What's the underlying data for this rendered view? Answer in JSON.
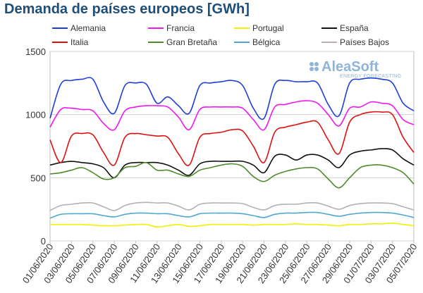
{
  "chart_data": {
    "type": "line",
    "title": "Demanda de países europeos [GWh]",
    "xlabel": "",
    "ylabel": "",
    "ylim": [
      0,
      1500
    ],
    "y_ticks": [
      0,
      500,
      1000,
      1500
    ],
    "grid": true,
    "legend_position": "top",
    "x": [
      "01/06/2020",
      "02/06/2020",
      "03/06/2020",
      "04/06/2020",
      "05/06/2020",
      "06/06/2020",
      "07/06/2020",
      "08/06/2020",
      "09/06/2020",
      "10/06/2020",
      "11/06/2020",
      "12/06/2020",
      "13/06/2020",
      "14/06/2020",
      "15/06/2020",
      "16/06/2020",
      "17/06/2020",
      "18/06/2020",
      "19/06/2020",
      "20/06/2020",
      "21/06/2020",
      "22/06/2020",
      "23/06/2020",
      "24/06/2020",
      "25/06/2020",
      "26/06/2020",
      "27/06/2020",
      "28/06/2020",
      "29/06/2020",
      "30/06/2020",
      "01/07/2020",
      "02/07/2020",
      "03/07/2020",
      "04/07/2020",
      "05/07/2020"
    ],
    "x_tick_labels": [
      "01/06/2020",
      "03/06/2020",
      "05/06/2020",
      "07/06/2020",
      "09/06/2020",
      "11/06/2020",
      "13/06/2020",
      "15/06/2020",
      "17/06/2020",
      "19/06/2020",
      "21/06/2020",
      "23/06/2020",
      "25/06/2020",
      "27/06/2020",
      "29/06/2020",
      "01/07/2020",
      "03/07/2020",
      "05/07/2020"
    ],
    "series": [
      {
        "name": "Alemania",
        "color": "#1f3fd6",
        "values": [
          970,
          1240,
          1270,
          1280,
          1280,
          1100,
          1010,
          1230,
          1250,
          1240,
          1090,
          1140,
          1070,
          1010,
          1230,
          1250,
          1260,
          1270,
          1230,
          1050,
          970,
          1240,
          1270,
          1260,
          1260,
          1250,
          1080,
          990,
          1250,
          1280,
          1290,
          1280,
          1250,
          1090,
          1030
        ]
      },
      {
        "name": "Francia",
        "color": "#f018f0",
        "values": [
          900,
          1040,
          1050,
          1040,
          1030,
          930,
          880,
          1030,
          1060,
          1070,
          1070,
          1060,
          980,
          880,
          1040,
          1060,
          1060,
          1060,
          1050,
          960,
          880,
          1060,
          1080,
          1100,
          1110,
          1090,
          1000,
          910,
          1050,
          1060,
          1100,
          1090,
          1070,
          960,
          920
        ]
      },
      {
        "name": "Portugal",
        "color": "#f0f000",
        "values": [
          130,
          130,
          130,
          130,
          125,
          120,
          120,
          125,
          130,
          130,
          110,
          120,
          130,
          115,
          120,
          130,
          130,
          130,
          130,
          125,
          130,
          130,
          130,
          135,
          130,
          130,
          125,
          120,
          130,
          130,
          135,
          135,
          140,
          130,
          120
        ]
      },
      {
        "name": "España",
        "color": "#111111",
        "values": [
          600,
          620,
          630,
          620,
          610,
          580,
          500,
          600,
          620,
          620,
          620,
          600,
          560,
          520,
          610,
          630,
          630,
          630,
          630,
          600,
          540,
          670,
          680,
          640,
          680,
          680,
          640,
          580,
          680,
          710,
          720,
          730,
          720,
          650,
          600
        ]
      },
      {
        "name": "Italia",
        "color": "#e01010",
        "values": [
          800,
          620,
          830,
          850,
          840,
          700,
          600,
          820,
          850,
          840,
          830,
          820,
          690,
          600,
          820,
          850,
          860,
          880,
          870,
          750,
          620,
          860,
          900,
          920,
          940,
          940,
          800,
          690,
          940,
          1000,
          1020,
          1020,
          1000,
          820,
          700
        ]
      },
      {
        "name": "Gran Bretaña",
        "color": "#4f8a2c",
        "values": [
          530,
          540,
          560,
          580,
          540,
          490,
          500,
          580,
          590,
          620,
          560,
          560,
          530,
          510,
          560,
          580,
          600,
          610,
          590,
          510,
          470,
          520,
          550,
          570,
          580,
          570,
          490,
          420,
          500,
          580,
          600,
          600,
          580,
          540,
          450
        ]
      },
      {
        "name": "Bélgica",
        "color": "#4fa8cc",
        "values": [
          180,
          210,
          215,
          215,
          215,
          200,
          190,
          210,
          220,
          220,
          215,
          215,
          200,
          190,
          215,
          220,
          220,
          220,
          215,
          200,
          185,
          210,
          220,
          220,
          225,
          225,
          210,
          195,
          210,
          220,
          225,
          225,
          220,
          205,
          185
        ]
      },
      {
        "name": "Países Bajos",
        "color": "#b8b0b0",
        "values": [
          240,
          280,
          290,
          300,
          300,
          270,
          240,
          280,
          300,
          305,
          300,
          300,
          275,
          245,
          290,
          300,
          300,
          300,
          295,
          265,
          245,
          280,
          290,
          290,
          300,
          300,
          275,
          250,
          280,
          295,
          300,
          300,
          295,
          270,
          245
        ]
      }
    ]
  },
  "logo": {
    "main": "AleaSoft",
    "sub": "ENERGY FORECASTING"
  }
}
